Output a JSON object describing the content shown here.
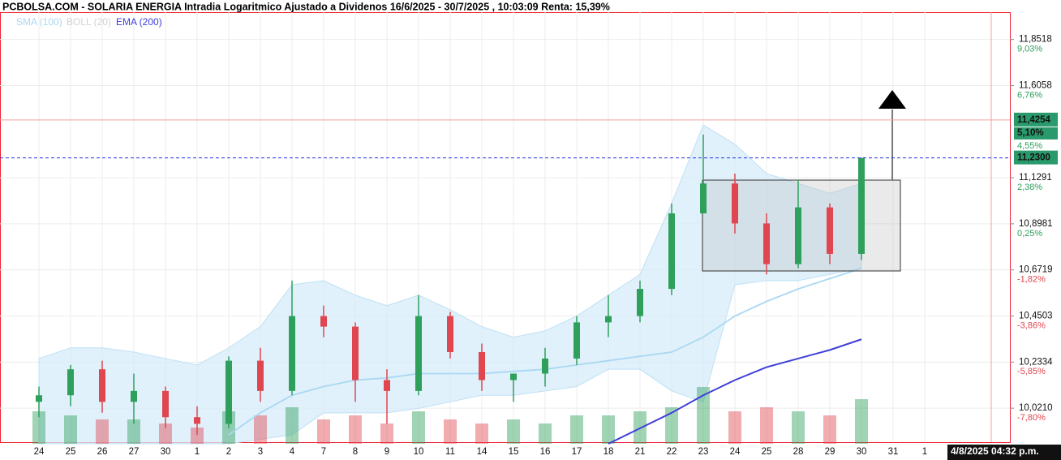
{
  "chart_data": {
    "type": "candlestick",
    "title": "PCBOLSA.COM - SOLARIA ENERGIA Intradia Logaritmico Ajustado a Dividenos 16/6/2025 - 30/7/2025 , 10:03:09 Renta: 15,39%",
    "categories": [
      "24",
      "25",
      "26",
      "27",
      "30",
      "1",
      "2",
      "3",
      "4",
      "7",
      "8",
      "9",
      "10",
      "11",
      "14",
      "15",
      "16",
      "17",
      "18",
      "21",
      "22",
      "23",
      "24",
      "25",
      "28",
      "29",
      "30",
      "31",
      "1"
    ],
    "open": [
      10.05,
      10.08,
      10.2,
      10.05,
      10.1,
      9.98,
      9.95,
      10.24,
      10.1,
      10.45,
      10.4,
      10.15,
      10.1,
      10.45,
      10.28,
      10.15,
      10.18,
      10.25,
      10.42,
      10.45,
      10.58,
      10.95,
      11.1,
      10.9,
      10.7,
      10.98,
      10.75,
      null,
      null
    ],
    "high": [
      10.12,
      10.22,
      10.24,
      10.18,
      10.12,
      10.03,
      10.26,
      10.3,
      10.62,
      10.5,
      10.42,
      10.2,
      10.55,
      10.47,
      10.32,
      10.18,
      10.3,
      10.45,
      10.55,
      10.62,
      11.0,
      11.35,
      11.15,
      10.95,
      11.12,
      11.0,
      11.23,
      null,
      null
    ],
    "low": [
      9.98,
      10.03,
      10.0,
      9.95,
      9.93,
      9.9,
      9.93,
      10.05,
      10.08,
      10.35,
      10.05,
      9.95,
      10.08,
      10.25,
      10.1,
      10.05,
      10.12,
      10.22,
      10.35,
      10.42,
      10.55,
      10.95,
      10.85,
      10.65,
      10.68,
      10.7,
      10.72,
      null,
      null
    ],
    "close": [
      10.08,
      10.2,
      10.05,
      10.1,
      9.98,
      9.95,
      10.24,
      10.1,
      10.45,
      10.4,
      10.15,
      10.1,
      10.45,
      10.28,
      10.15,
      10.18,
      10.25,
      10.42,
      10.45,
      10.58,
      10.95,
      11.1,
      10.9,
      10.7,
      10.98,
      10.75,
      11.23,
      null,
      null
    ],
    "volume": [
      40,
      35,
      30,
      30,
      25,
      20,
      40,
      35,
      45,
      30,
      35,
      25,
      40,
      30,
      25,
      30,
      25,
      35,
      35,
      40,
      45,
      70,
      40,
      45,
      40,
      35,
      55,
      null,
      null
    ],
    "vlim": [
      0,
      100
    ],
    "up_color": "#2ea05c",
    "down_color": "#e0464f",
    "series": [
      {
        "name": "SMA (100)",
        "color": "#a9d8f2",
        "values": [
          null,
          null,
          null,
          null,
          null,
          null,
          9.9,
          10.0,
          10.08,
          10.12,
          10.15,
          10.16,
          10.18,
          10.18,
          10.18,
          10.19,
          10.2,
          10.22,
          10.24,
          10.26,
          10.28,
          10.35,
          10.45,
          10.52,
          10.58,
          10.63,
          10.68,
          null,
          null
        ]
      },
      {
        "name": "BOLL (20)",
        "color": "#d2d2d2",
        "band_color": "#d6ecfa",
        "upper": [
          10.25,
          10.3,
          10.3,
          10.28,
          10.25,
          10.22,
          10.3,
          10.4,
          10.6,
          10.62,
          10.55,
          10.5,
          10.55,
          10.48,
          10.4,
          10.35,
          10.38,
          10.45,
          10.55,
          10.65,
          11.0,
          11.4,
          11.3,
          11.15,
          11.1,
          11.05,
          11.1,
          null,
          null
        ],
        "lower": [
          9.86,
          9.86,
          9.86,
          9.86,
          9.86,
          9.86,
          9.86,
          9.88,
          9.9,
          10.0,
          10.0,
          10.0,
          10.02,
          10.05,
          10.08,
          10.08,
          10.1,
          10.12,
          10.2,
          10.2,
          10.1,
          10.05,
          10.6,
          10.62,
          10.62,
          10.65,
          10.68,
          null,
          null
        ]
      },
      {
        "name": "EMA (200)",
        "color": "#3f3fd8",
        "values": [
          null,
          null,
          null,
          null,
          null,
          null,
          null,
          null,
          null,
          null,
          null,
          null,
          null,
          null,
          null,
          null,
          null,
          null,
          9.86,
          9.93,
          10.0,
          10.08,
          10.15,
          10.21,
          10.25,
          10.29,
          10.34,
          null,
          null
        ]
      }
    ],
    "log_scale": true,
    "ylim": [
      9.86,
      12.0
    ],
    "yticks": [
      {
        "value": 10.021,
        "label": "10,0210"
      },
      {
        "value": 10.2334,
        "label": "10,2334"
      },
      {
        "value": 10.4503,
        "label": "10,4503"
      },
      {
        "value": 10.6719,
        "label": "10,6719"
      },
      {
        "value": 10.8981,
        "label": "10,8981"
      },
      {
        "value": 11.1291,
        "label": "11,1291"
      },
      {
        "value": 11.6058,
        "label": "11,6058"
      },
      {
        "value": 11.8518,
        "label": "11,8518"
      }
    ],
    "ytick_pcts": [
      {
        "value": -7.8,
        "label": "-7,80%"
      },
      {
        "value": -5.85,
        "label": "-5,85%"
      },
      {
        "value": -3.86,
        "label": "-3,86%"
      },
      {
        "value": -1.82,
        "label": "-1,82%"
      },
      {
        "value": 0.25,
        "label": "0,25%"
      },
      {
        "value": 2.38,
        "label": "2,38%"
      },
      {
        "value": 6.76,
        "label": "6,76%"
      },
      {
        "value": 9.03,
        "label": "9,03%"
      }
    ],
    "extra_pct": {
      "value": 4.55,
      "label": "4,55%"
    },
    "target": {
      "value": 11.4254,
      "label": "11,4254",
      "pct": {
        "value": 5.1,
        "label": "5,10%"
      }
    },
    "last_price": {
      "value": 11.23,
      "label": "11,2300"
    },
    "cursor_time": "4/8/2025 04:32 p.m.",
    "grid": true
  }
}
